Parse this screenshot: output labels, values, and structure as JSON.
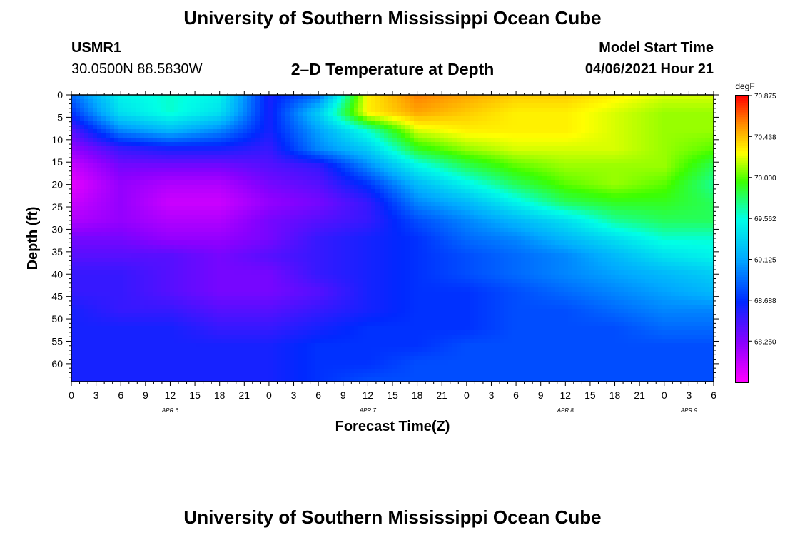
{
  "titles": {
    "top": "University of Southern Mississippi Ocean Cube",
    "bottom": "University of Southern Mississippi Ocean Cube",
    "station": "USMR1",
    "location": "30.0500N  88.5830W",
    "plot": "2–D Temperature at Depth",
    "model_label": "Model Start Time",
    "model_time": "04/06/2021 Hour 21"
  },
  "chart_data": {
    "type": "heatmap",
    "title": "2-D Temperature at Depth",
    "xlabel": "Forecast Time(Z)",
    "ylabel": "Depth (ft)",
    "x_ticks": [
      "0",
      "3",
      "6",
      "9",
      "12",
      "15",
      "18",
      "21",
      "0",
      "3",
      "6",
      "9",
      "12",
      "15",
      "18",
      "21",
      "0",
      "3",
      "6",
      "9",
      "12",
      "15",
      "18",
      "21",
      "0",
      "3",
      "6"
    ],
    "x_range_hours": [
      0,
      78
    ],
    "day_labels": [
      {
        "text": "APR 6",
        "hour": 12
      },
      {
        "text": "APR 7",
        "hour": 36
      },
      {
        "text": "APR 8",
        "hour": 60
      },
      {
        "text": "APR 9",
        "hour": 75
      }
    ],
    "y_ticks": [
      0,
      5,
      10,
      15,
      20,
      25,
      30,
      35,
      40,
      45,
      50,
      55,
      60
    ],
    "y_range_ft": [
      0,
      64
    ],
    "colorbar": {
      "units": "degF",
      "min": 67.81,
      "max": 70.875,
      "tick_values": [
        70.875,
        70.438,
        70.0,
        69.562,
        69.125,
        68.688,
        68.25
      ],
      "tick_labels": [
        "70.875",
        "70.438",
        "70.000",
        "69.562",
        "69.125",
        "68.688",
        "68.250"
      ]
    },
    "grid_hours": [
      0,
      6,
      12,
      18,
      24,
      30,
      36,
      42,
      48,
      54,
      60,
      66,
      72,
      78
    ],
    "grid_depths_ft": [
      0,
      4,
      8,
      12,
      16,
      20,
      24,
      28,
      32,
      36,
      40,
      44,
      48,
      52,
      56,
      60,
      64
    ],
    "temperature_degF": [
      [
        68.9,
        69.5,
        69.6,
        69.5,
        68.6,
        68.9,
        70.3,
        70.6,
        70.5,
        70.4,
        70.4,
        70.3,
        70.2,
        70.2
      ],
      [
        68.7,
        69.4,
        69.6,
        69.4,
        68.6,
        69.3,
        70.3,
        70.5,
        70.4,
        70.3,
        70.3,
        70.2,
        70.1,
        70.1
      ],
      [
        68.4,
        69.0,
        69.2,
        69.0,
        68.6,
        69.1,
        69.6,
        70.2,
        70.3,
        70.3,
        70.3,
        70.2,
        70.1,
        70.1
      ],
      [
        68.2,
        68.5,
        68.6,
        68.6,
        68.5,
        69.0,
        69.3,
        69.9,
        70.1,
        70.2,
        70.2,
        70.2,
        70.1,
        70.0
      ],
      [
        68.0,
        68.3,
        68.3,
        68.3,
        68.4,
        68.5,
        69.0,
        69.5,
        69.8,
        70.0,
        70.1,
        70.1,
        70.1,
        69.8
      ],
      [
        67.9,
        68.2,
        68.1,
        68.1,
        68.3,
        68.4,
        68.7,
        69.2,
        69.5,
        69.8,
        70.0,
        70.1,
        70.0,
        69.7
      ],
      [
        68.0,
        68.2,
        68.0,
        68.0,
        68.2,
        68.3,
        68.5,
        69.0,
        69.2,
        69.5,
        69.8,
        69.9,
        69.9,
        69.8
      ],
      [
        68.1,
        68.2,
        68.1,
        68.1,
        68.3,
        68.4,
        68.5,
        68.8,
        69.0,
        69.2,
        69.4,
        69.7,
        69.8,
        69.8
      ],
      [
        68.3,
        68.3,
        68.2,
        68.2,
        68.3,
        68.5,
        68.6,
        68.7,
        68.9,
        69.0,
        69.2,
        69.4,
        69.6,
        69.6
      ],
      [
        68.4,
        68.4,
        68.4,
        68.3,
        68.4,
        68.5,
        68.6,
        68.7,
        68.8,
        68.9,
        69.0,
        69.2,
        69.4,
        69.5
      ],
      [
        68.5,
        68.5,
        68.4,
        68.3,
        68.3,
        68.5,
        68.6,
        68.7,
        68.8,
        68.9,
        69.0,
        69.1,
        69.2,
        69.3
      ],
      [
        68.5,
        68.5,
        68.4,
        68.3,
        68.3,
        68.4,
        68.6,
        68.7,
        68.7,
        68.8,
        68.9,
        69.0,
        69.1,
        69.2
      ],
      [
        68.6,
        68.5,
        68.5,
        68.4,
        68.4,
        68.5,
        68.6,
        68.7,
        68.7,
        68.8,
        68.8,
        68.9,
        69.0,
        69.0
      ],
      [
        68.6,
        68.6,
        68.6,
        68.5,
        68.5,
        68.6,
        68.7,
        68.7,
        68.7,
        68.8,
        68.8,
        68.8,
        68.9,
        68.9
      ],
      [
        68.6,
        68.6,
        68.6,
        68.6,
        68.6,
        68.7,
        68.7,
        68.7,
        68.8,
        68.8,
        68.8,
        68.8,
        68.8,
        68.8
      ],
      [
        68.6,
        68.6,
        68.6,
        68.6,
        68.6,
        68.7,
        68.7,
        68.8,
        68.8,
        68.8,
        68.8,
        68.8,
        68.8,
        68.8
      ],
      [
        68.6,
        68.6,
        68.6,
        68.6,
        68.6,
        68.7,
        68.8,
        68.8,
        68.8,
        68.8,
        68.8,
        68.8,
        68.8,
        68.8
      ]
    ]
  }
}
